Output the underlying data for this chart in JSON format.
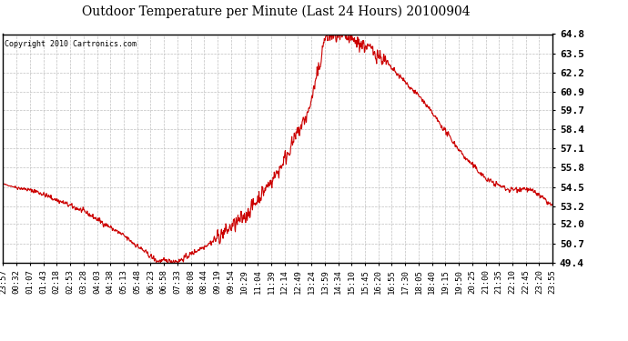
{
  "title": "Outdoor Temperature per Minute (Last 24 Hours) 20100904",
  "copyright_text": "Copyright 2010 Cartronics.com",
  "line_color": "#cc0000",
  "background_color": "#ffffff",
  "ytick_values": [
    49.4,
    50.7,
    52.0,
    53.2,
    54.5,
    55.8,
    57.1,
    58.4,
    59.7,
    60.9,
    62.2,
    63.5,
    64.8
  ],
  "ylim": [
    49.4,
    64.8
  ],
  "xtick_labels": [
    "23:57",
    "00:32",
    "01:07",
    "01:43",
    "02:18",
    "02:53",
    "03:28",
    "04:03",
    "04:38",
    "05:13",
    "05:48",
    "06:23",
    "06:58",
    "07:33",
    "08:08",
    "08:44",
    "09:19",
    "09:54",
    "10:29",
    "11:04",
    "11:39",
    "12:14",
    "12:49",
    "13:24",
    "13:59",
    "14:34",
    "15:10",
    "15:45",
    "16:20",
    "16:55",
    "17:30",
    "18:05",
    "18:40",
    "19:15",
    "19:50",
    "20:25",
    "21:00",
    "21:35",
    "22:10",
    "22:45",
    "23:20",
    "23:55"
  ]
}
